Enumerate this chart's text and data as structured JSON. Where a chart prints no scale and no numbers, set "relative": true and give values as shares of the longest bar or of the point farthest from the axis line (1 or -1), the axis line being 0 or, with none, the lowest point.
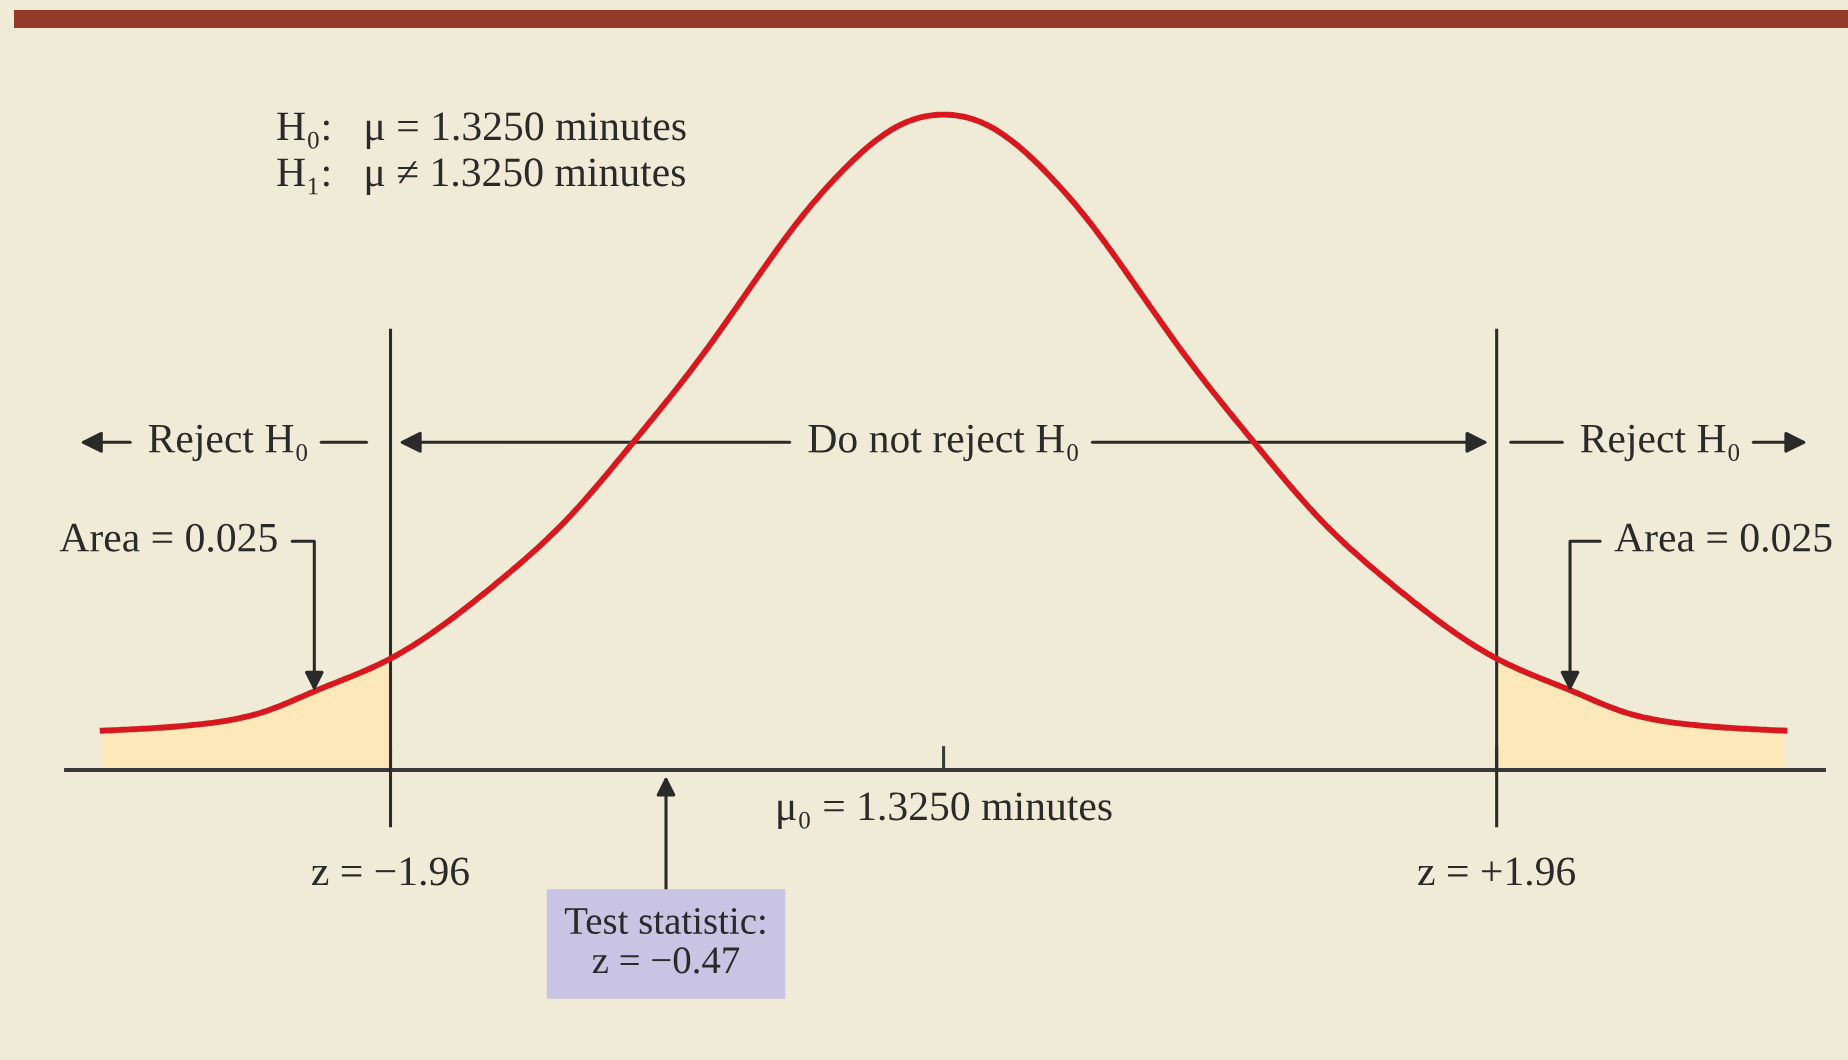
{
  "chart_data": {
    "type": "line",
    "relative": true,
    "series": [
      {
        "type": "area",
        "color": "#fde8b9",
        "x": [
          -2.98,
          -2.63,
          -2.4,
          -2.23,
          -1.96
        ],
        "values": [
          0.06,
          0.07,
          0.09,
          0.12,
          0.17
        ]
      },
      {
        "type": "area",
        "color": "#fde8b9",
        "x": [
          1.96,
          2.23,
          2.4,
          2.63,
          2.98
        ],
        "values": [
          0.17,
          0.12,
          0.09,
          0.07,
          0.06
        ]
      },
      {
        "color": "#d7191f",
        "x": [
          -2.98,
          -2.63,
          -2.4,
          -2.23,
          -1.96,
          -1.81,
          -1.57,
          -1.34,
          -1.1,
          -0.86,
          -0.63,
          -0.51,
          -0.39,
          -0.27,
          -0.15,
          0,
          0.15,
          0.27,
          0.39,
          0.51,
          0.63,
          0.86,
          1.1,
          1.34,
          1.57,
          1.81,
          1.96,
          2.23,
          2.4,
          2.63,
          2.98
        ],
        "values": [
          0.06,
          0.07,
          0.09,
          0.12,
          0.17,
          0.21,
          0.29,
          0.38,
          0.5,
          0.63,
          0.77,
          0.84,
          0.9,
          0.95,
          0.985,
          1,
          0.985,
          0.95,
          0.9,
          0.84,
          0.77,
          0.63,
          0.5,
          0.38,
          0.29,
          0.21,
          0.17,
          0.12,
          0.09,
          0.07,
          0.06
        ]
      }
    ],
    "xlim": [
      -3.11,
      3.12
    ],
    "xticks": [
      {
        "value": -1.96,
        "label": "z = −1.96"
      },
      {
        "value": 0,
        "label": null
      },
      {
        "value": 1.96,
        "label": "z = +1.96"
      }
    ],
    "ref_lines": [
      {
        "axis": "x",
        "value": -1.96,
        "color": "#2b2b2b"
      },
      {
        "axis": "x",
        "value": 1.96,
        "color": "#2b2b2b"
      }
    ],
    "annotations": [
      "H₀:   μ = 1.3250 minutes",
      "H₁:   μ ≠ 1.3250 minutes",
      "Reject H₀",
      "Do not reject H₀",
      "Reject H₀",
      "Test statistic:\nz = −0.47",
      "μ₀ = 1.3250 minutes",
      {
        "text": "Area = 0.025",
        "x": -2.23,
        "y": 0.12
      },
      {
        "text": "Area = 0.025",
        "x": 2.22,
        "y": 0.12
      }
    ]
  }
}
